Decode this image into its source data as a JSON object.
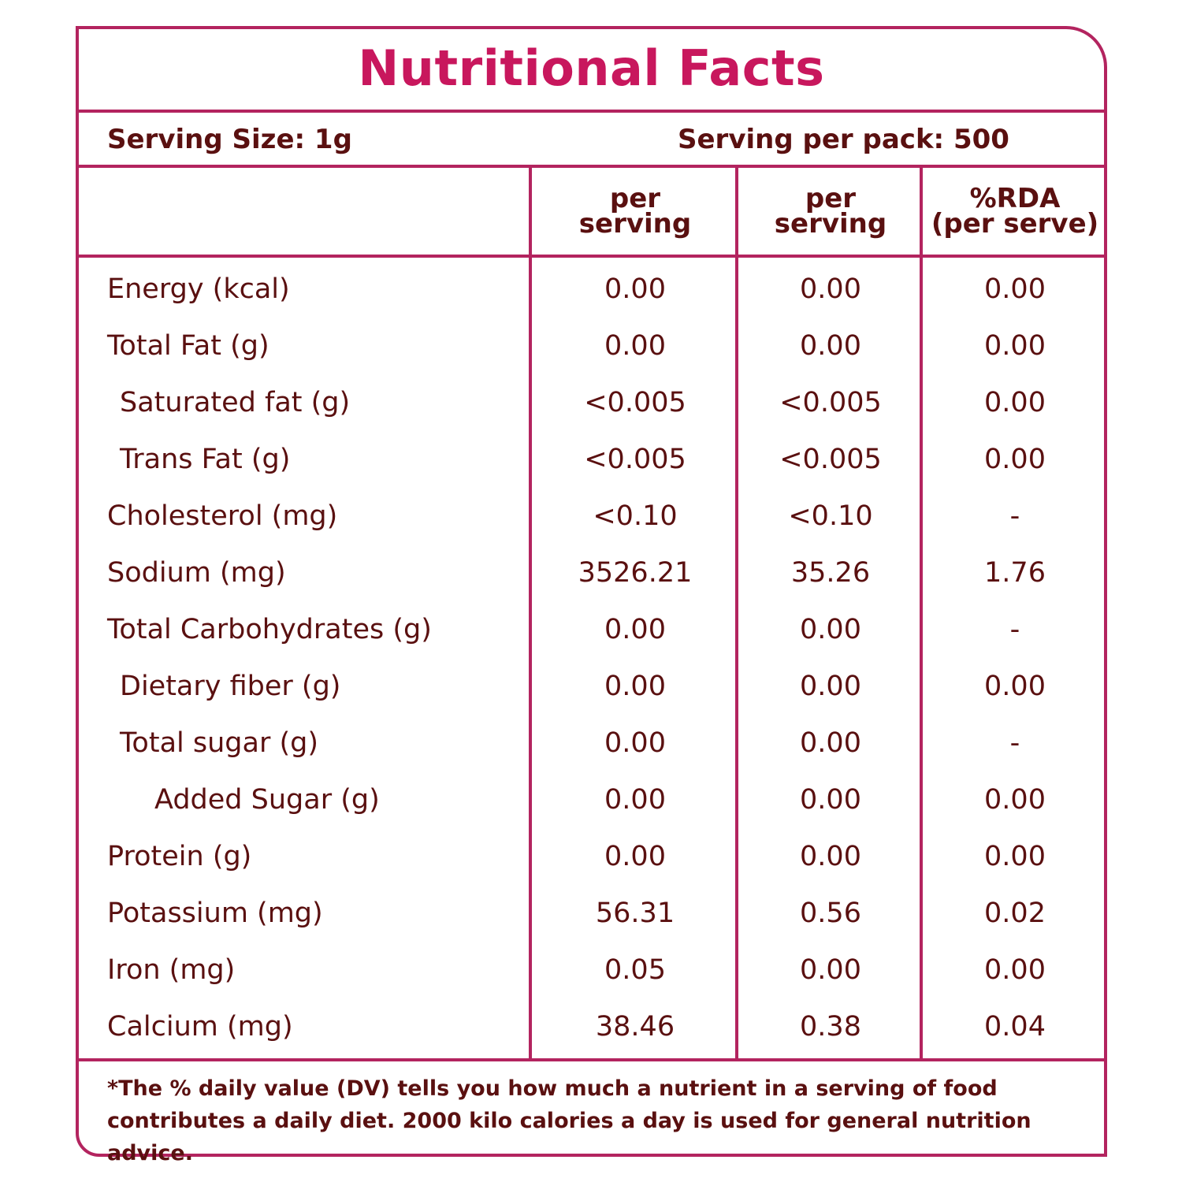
{
  "title": "Nutritional Facts",
  "serving": {
    "size": "Serving Size: 1g",
    "per_pack": "Serving per pack: 500"
  },
  "columns": {
    "col1": [
      "per",
      "serving"
    ],
    "col2": [
      "per",
      "serving"
    ],
    "col3": [
      "%RDA",
      "(per serve)"
    ]
  },
  "rows": [
    {
      "label": "Energy (kcal)",
      "indent": 0,
      "v1": "0.00",
      "v2": "0.00",
      "v3": "0.00"
    },
    {
      "label": "Total Fat (g)",
      "indent": 0,
      "v1": "0.00",
      "v2": "0.00",
      "v3": "0.00"
    },
    {
      "label": "Saturated fat (g)",
      "indent": 1,
      "v1": "<0.005",
      "v2": "<0.005",
      "v3": "0.00"
    },
    {
      "label": "Trans Fat (g)",
      "indent": 1,
      "v1": "<0.005",
      "v2": "<0.005",
      "v3": "0.00"
    },
    {
      "label": "Cholesterol (mg)",
      "indent": 0,
      "v1": "<0.10",
      "v2": "<0.10",
      "v3": "-"
    },
    {
      "label": "Sodium (mg)",
      "indent": 0,
      "v1": "3526.21",
      "v2": "35.26",
      "v3": "1.76"
    },
    {
      "label": "Total Carbohydrates  (g)",
      "indent": 0,
      "v1": "0.00",
      "v2": "0.00",
      "v3": "-"
    },
    {
      "label": "Dietary fiber (g)",
      "indent": 1,
      "v1": "0.00",
      "v2": "0.00",
      "v3": "0.00"
    },
    {
      "label": "Total sugar (g)",
      "indent": 1,
      "v1": "0.00",
      "v2": "0.00",
      "v3": "-"
    },
    {
      "label": "Added Sugar (g)",
      "indent": 2,
      "v1": "0.00",
      "v2": "0.00",
      "v3": "0.00"
    },
    {
      "label": "Protein (g)",
      "indent": 0,
      "v1": "0.00",
      "v2": "0.00",
      "v3": "0.00"
    },
    {
      "label": "Potassium (mg)",
      "indent": 0,
      "v1": "56.31",
      "v2": "0.56",
      "v3": "0.02"
    },
    {
      "label": "Iron (mg)",
      "indent": 0,
      "v1": "0.05",
      "v2": "0.00",
      "v3": "0.00"
    },
    {
      "label": "Calcium (mg)",
      "indent": 0,
      "v1": "38.46",
      "v2": "0.38",
      "v3": "0.04"
    }
  ],
  "footnote": "*The % daily value (DV) tells you how much a nutrient in a serving of food contributes a daily diet. 2000 kilo calories a day is used for general nutrition advice.",
  "colors": {
    "border": "#b3245f",
    "title": "#c8175d",
    "text": "#5a1010"
  }
}
